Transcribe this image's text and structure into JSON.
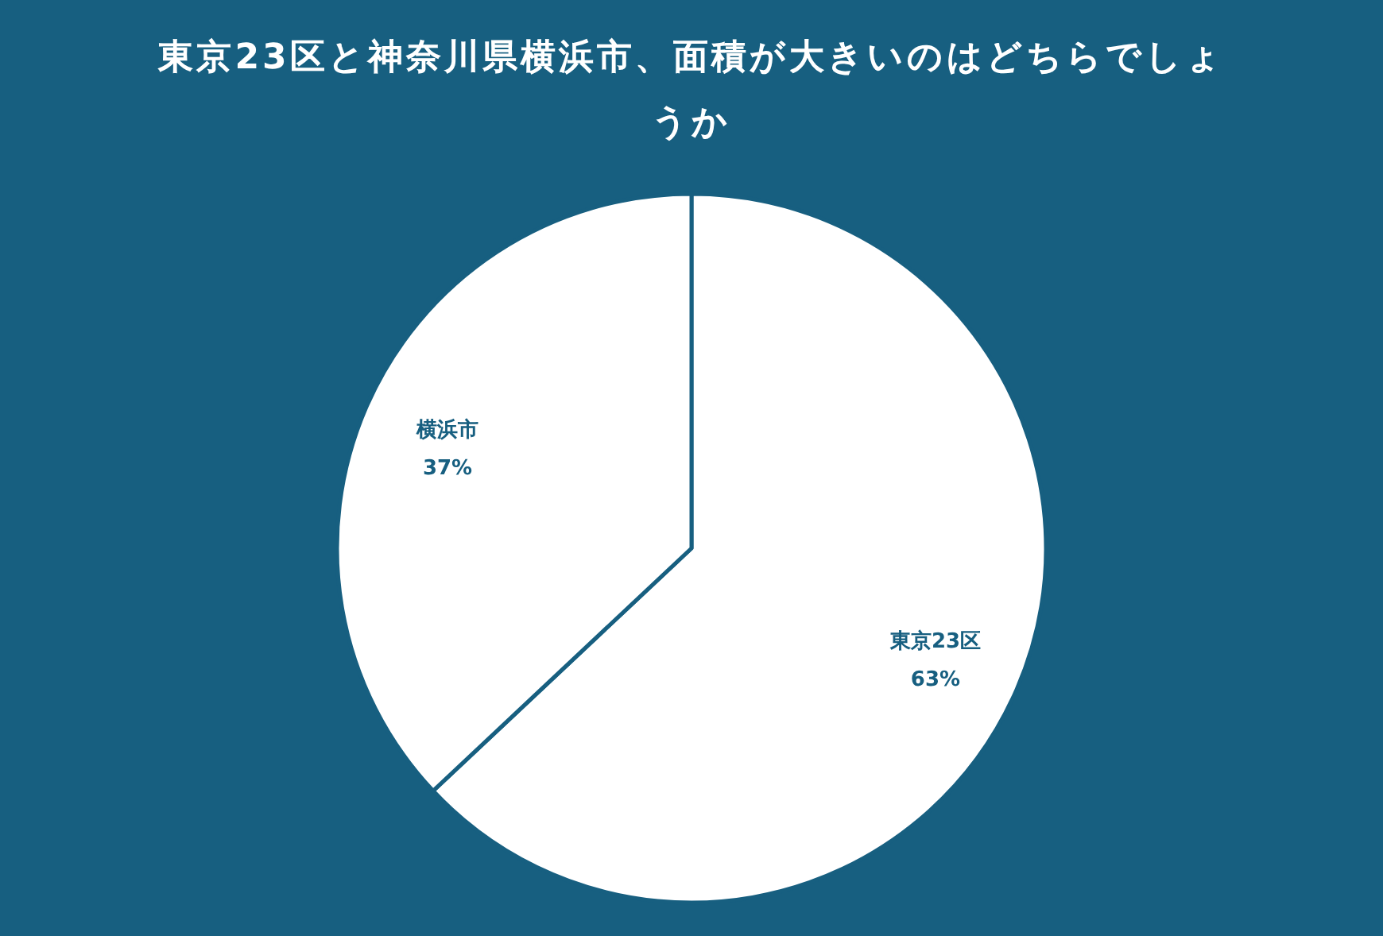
{
  "chart_data": {
    "type": "pie",
    "title": "東京23区と神奈川県横浜市、面積が大きいのはどちらでしょうか",
    "categories": [
      "東京23区",
      "横浜市"
    ],
    "values": [
      63,
      37
    ],
    "value_labels": [
      "63%",
      "37%"
    ],
    "colors": [
      "#ffffff",
      "#ffffff"
    ]
  }
}
